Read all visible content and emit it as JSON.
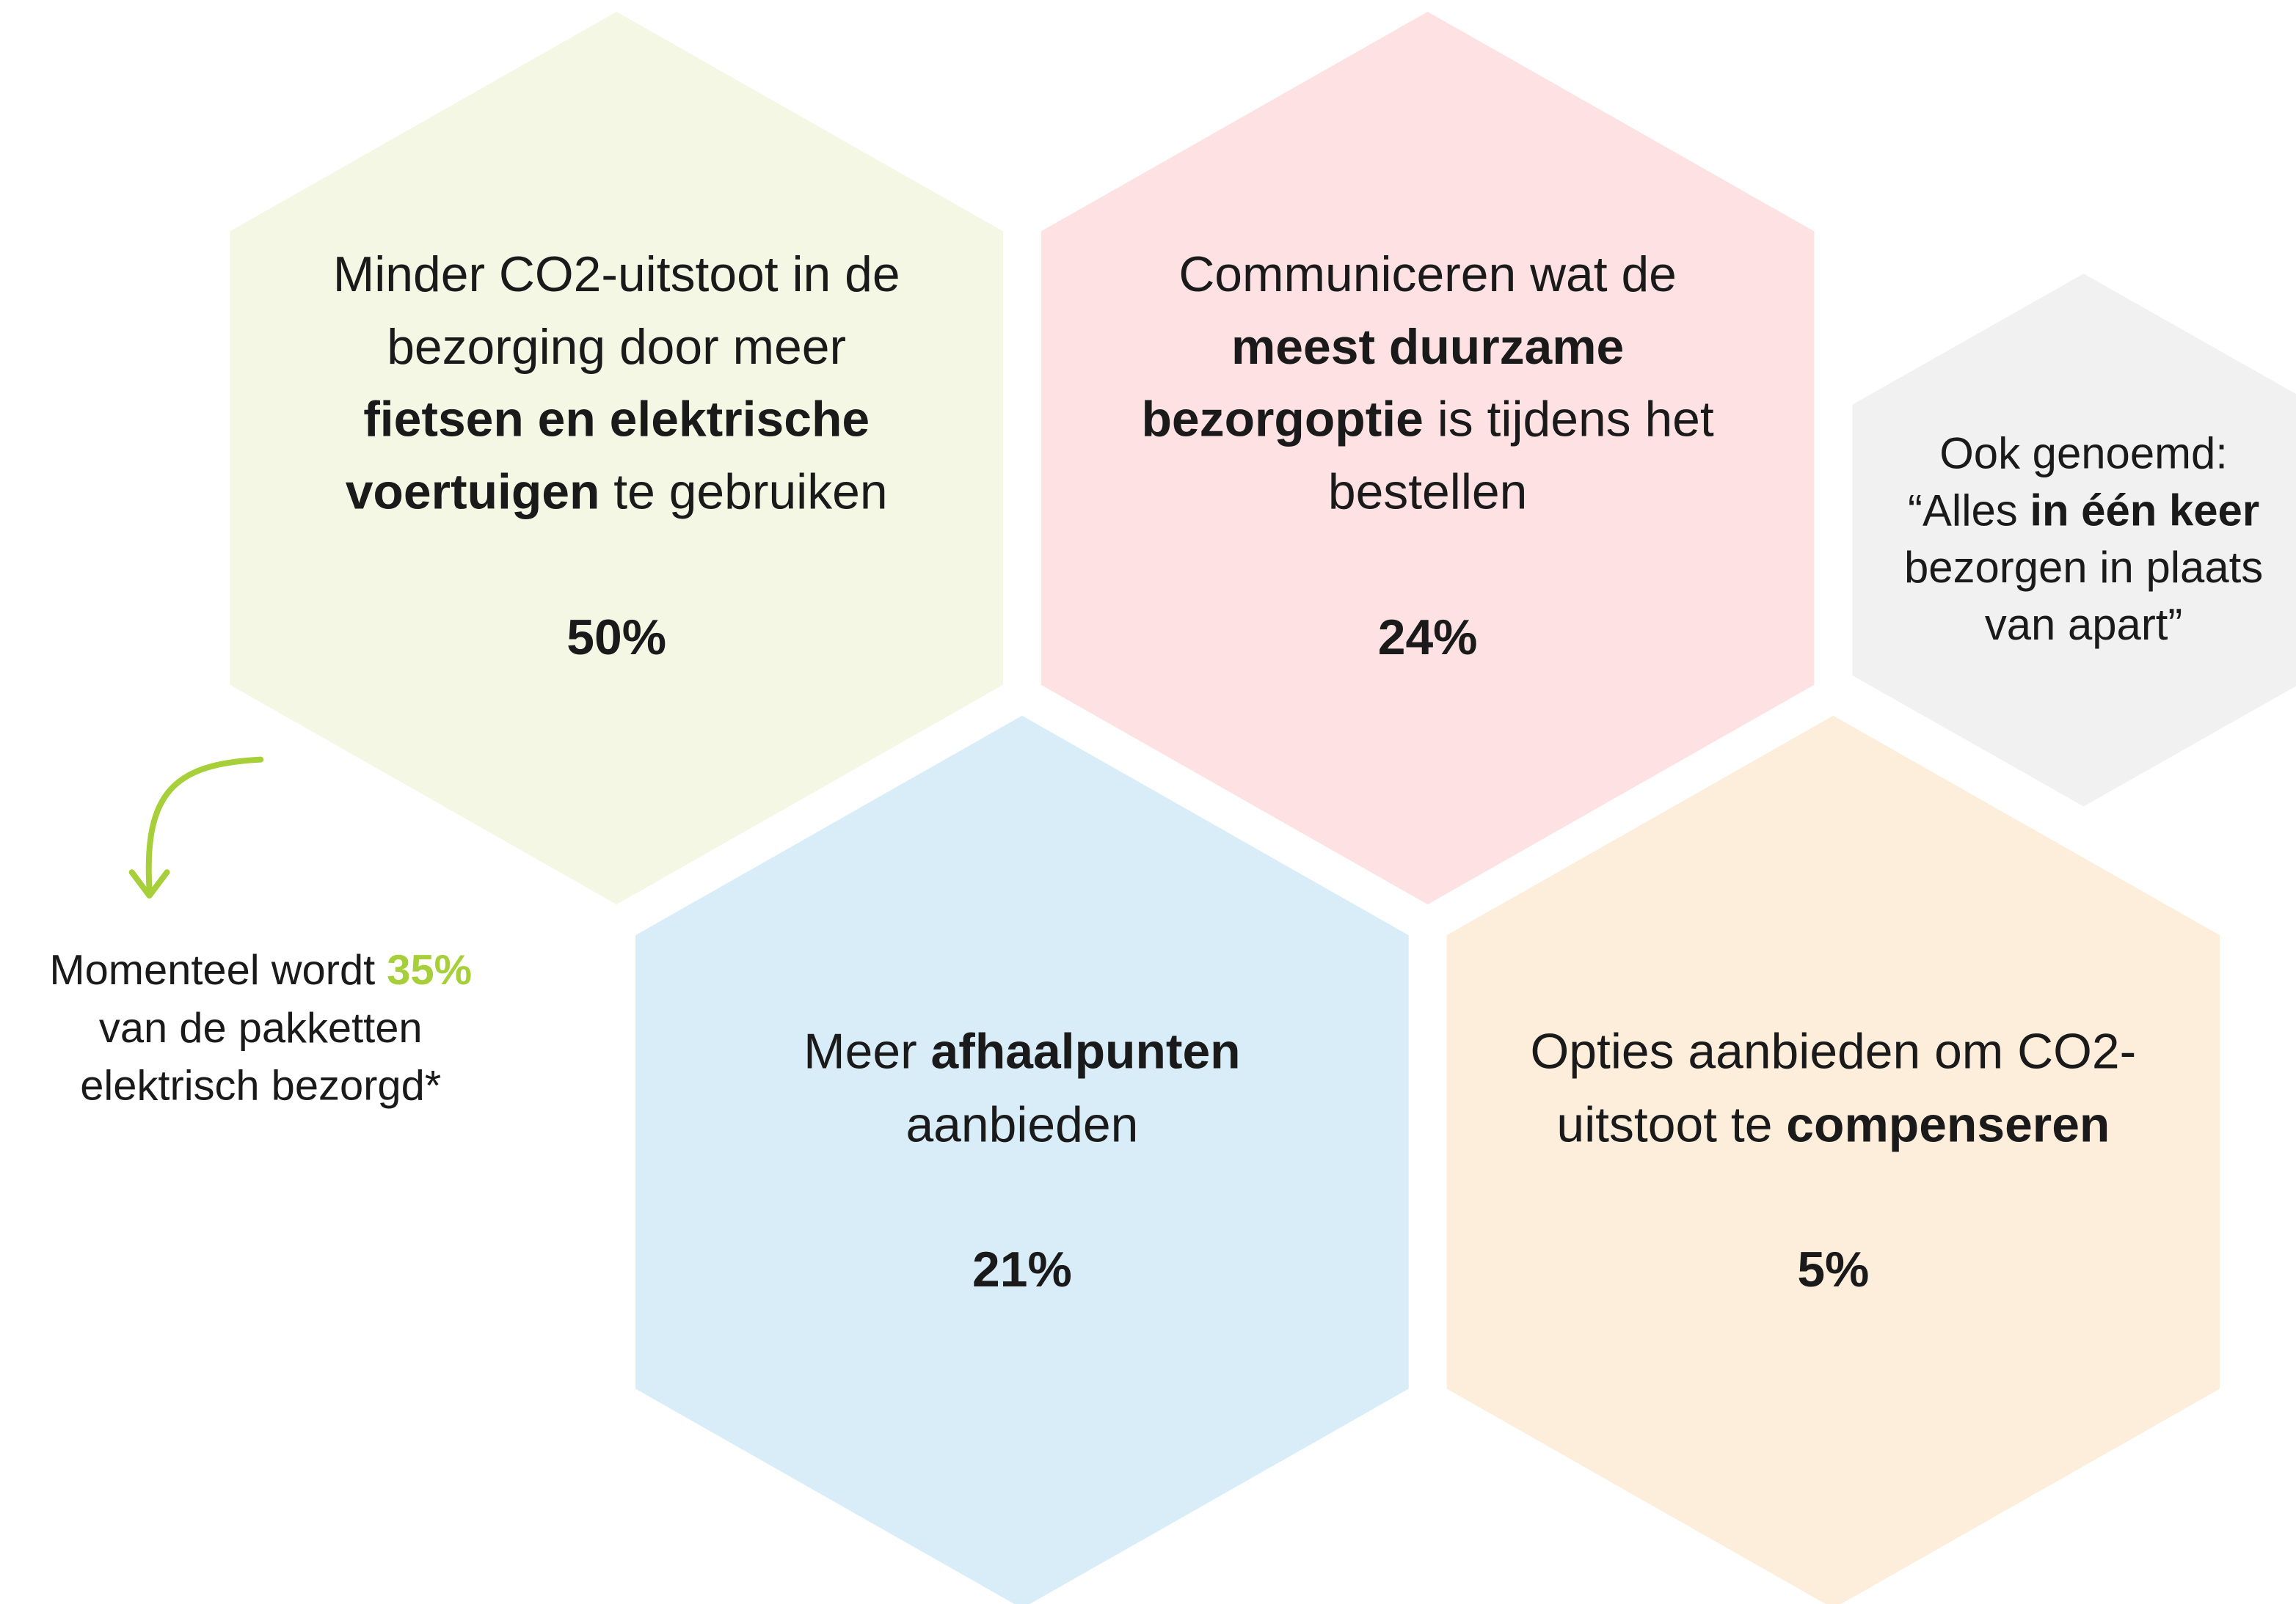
{
  "hexagons": [
    {
      "lines": [
        [
          "Minder CO2-uitstoot in de"
        ],
        [
          "bezorging door meer"
        ],
        [
          {
            "bold": "fietsen en elektrische"
          }
        ],
        [
          {
            "bold": "voertuigen"
          },
          " te gebruiken"
        ]
      ],
      "percentage": "50%"
    },
    {
      "lines": [
        [
          "Communiceren wat de"
        ],
        [
          {
            "bold": "meest duurzame"
          }
        ],
        [
          {
            "bold": "bezorgoptie"
          },
          " is tijdens het"
        ],
        [
          "bestellen"
        ]
      ],
      "percentage": "24%"
    },
    {
      "lines": [
        [
          "Ook genoemd:"
        ],
        [
          "“Alles ",
          {
            "bold": "in één keer"
          }
        ],
        [
          "bezorgen in plaats"
        ],
        [
          "van apart”"
        ]
      ]
    },
    {
      "lines": [
        [
          "Meer ",
          {
            "bold": "afhaalpunten"
          }
        ],
        [
          "aanbieden"
        ]
      ],
      "percentage": "21%"
    },
    {
      "lines": [
        [
          "Opties aanbieden om CO2-"
        ],
        [
          "uitstoot te ",
          {
            "bold": "compenseren"
          }
        ]
      ],
      "percentage": "5%"
    }
  ],
  "annotation": {
    "lines": [
      [
        "Momenteel wordt ",
        {
          "highlight": "35%"
        }
      ],
      [
        "van de pakketten"
      ],
      [
        "elektrisch bezorgd*"
      ]
    ]
  }
}
